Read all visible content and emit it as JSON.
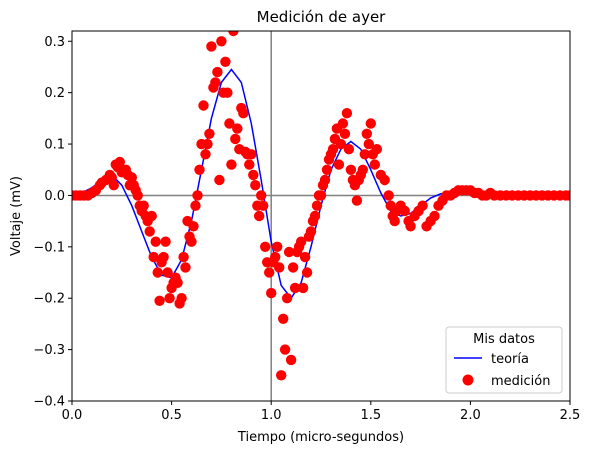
{
  "chart_data": {
    "type": "line",
    "title": "Medición de ayer",
    "xlabel": "Tiempo (micro-segundos)",
    "ylabel": "Voltaje (mV)",
    "xlim": [
      0.0,
      2.5
    ],
    "ylim": [
      -0.4,
      0.32
    ],
    "xticks": [
      "0.0",
      "0.5",
      "1.0",
      "1.5",
      "2.0",
      "2.5"
    ],
    "yticks": [
      "−0.4",
      "−0.3",
      "−0.2",
      "−0.1",
      "0.0",
      "0.1",
      "0.2",
      "0.3"
    ],
    "xtick_values": [
      0.0,
      0.5,
      1.0,
      1.5,
      2.0,
      2.5
    ],
    "ytick_values": [
      -0.4,
      -0.3,
      -0.2,
      -0.1,
      0.0,
      0.1,
      0.2,
      0.3
    ],
    "reference_lines": {
      "horizontal_y": 0.0,
      "vertical_x": 1.0,
      "color": "#808080"
    },
    "legend": {
      "title": "Mis datos",
      "placement": "lower right"
    },
    "series": [
      {
        "name": "teoría",
        "kind": "line",
        "color": "#0000ff",
        "x": [
          0.0,
          0.05,
          0.1,
          0.15,
          0.2,
          0.25,
          0.3,
          0.35,
          0.4,
          0.45,
          0.5,
          0.55,
          0.6,
          0.65,
          0.7,
          0.75,
          0.8,
          0.85,
          0.9,
          0.95,
          1.0,
          1.05,
          1.1,
          1.15,
          1.2,
          1.25,
          1.3,
          1.35,
          1.4,
          1.45,
          1.5,
          1.55,
          1.6,
          1.65,
          1.7,
          1.75,
          1.8,
          1.85,
          1.9,
          1.95,
          2.0,
          2.05,
          2.1,
          2.15,
          2.2,
          2.25,
          2.3,
          2.35,
          2.4,
          2.45,
          2.5
        ],
        "y": [
          0.0,
          0.005,
          0.015,
          0.03,
          0.04,
          0.02,
          -0.02,
          -0.07,
          -0.12,
          -0.155,
          -0.16,
          -0.125,
          -0.05,
          0.05,
          0.15,
          0.22,
          0.245,
          0.22,
          0.14,
          0.03,
          -0.09,
          -0.175,
          -0.2,
          -0.17,
          -0.1,
          -0.02,
          0.05,
          0.09,
          0.105,
          0.09,
          0.05,
          0.005,
          -0.03,
          -0.04,
          -0.035,
          -0.02,
          -0.005,
          0.003,
          0.006,
          0.005,
          0.003,
          0.0,
          0.0,
          0.0,
          0.0,
          0.0,
          0.0,
          0.0,
          0.0,
          0.0,
          0.0
        ]
      },
      {
        "name": "medición",
        "kind": "scatter",
        "color": "#ff0000",
        "x": [
          0.0,
          0.02,
          0.04,
          0.06,
          0.08,
          0.1,
          0.12,
          0.14,
          0.15,
          0.17,
          0.19,
          0.2,
          0.21,
          0.22,
          0.23,
          0.24,
          0.25,
          0.27,
          0.28,
          0.29,
          0.3,
          0.31,
          0.32,
          0.33,
          0.34,
          0.35,
          0.36,
          0.37,
          0.38,
          0.39,
          0.4,
          0.41,
          0.42,
          0.43,
          0.44,
          0.45,
          0.46,
          0.47,
          0.48,
          0.49,
          0.5,
          0.51,
          0.52,
          0.53,
          0.54,
          0.55,
          0.56,
          0.57,
          0.58,
          0.59,
          0.6,
          0.61,
          0.62,
          0.63,
          0.64,
          0.65,
          0.66,
          0.67,
          0.68,
          0.69,
          0.7,
          0.71,
          0.72,
          0.73,
          0.74,
          0.75,
          0.76,
          0.77,
          0.78,
          0.79,
          0.8,
          0.81,
          0.82,
          0.83,
          0.84,
          0.85,
          0.86,
          0.87,
          0.88,
          0.89,
          0.9,
          0.91,
          0.92,
          0.93,
          0.94,
          0.95,
          0.96,
          0.97,
          0.98,
          0.99,
          1.0,
          1.01,
          1.02,
          1.03,
          1.04,
          1.05,
          1.06,
          1.07,
          1.08,
          1.09,
          1.1,
          1.11,
          1.12,
          1.13,
          1.14,
          1.15,
          1.16,
          1.17,
          1.18,
          1.19,
          1.2,
          1.21,
          1.22,
          1.23,
          1.24,
          1.25,
          1.26,
          1.27,
          1.28,
          1.29,
          1.3,
          1.31,
          1.32,
          1.33,
          1.34,
          1.35,
          1.36,
          1.37,
          1.38,
          1.39,
          1.4,
          1.41,
          1.42,
          1.43,
          1.44,
          1.45,
          1.46,
          1.47,
          1.48,
          1.49,
          1.5,
          1.51,
          1.52,
          1.53,
          1.55,
          1.57,
          1.59,
          1.6,
          1.61,
          1.62,
          1.63,
          1.65,
          1.67,
          1.69,
          1.7,
          1.72,
          1.74,
          1.76,
          1.78,
          1.8,
          1.82,
          1.84,
          1.86,
          1.88,
          1.9,
          1.92,
          1.94,
          1.96,
          1.98,
          2.0,
          2.02,
          2.04,
          2.06,
          2.08,
          2.1,
          2.12,
          2.15,
          2.18,
          2.21,
          2.24,
          2.27,
          2.3,
          2.33,
          2.36,
          2.39,
          2.42,
          2.45,
          2.48,
          2.5
        ],
        "y": [
          0.0,
          0.0,
          0.0,
          0.0,
          0.0,
          0.005,
          0.01,
          0.02,
          0.025,
          0.03,
          0.04,
          0.035,
          0.02,
          0.06,
          0.055,
          0.065,
          0.045,
          0.05,
          0.04,
          0.02,
          0.035,
          0.02,
          0.01,
          0.0,
          -0.02,
          -0.03,
          -0.02,
          -0.04,
          -0.05,
          -0.07,
          -0.04,
          -0.12,
          -0.09,
          -0.15,
          -0.205,
          -0.13,
          -0.12,
          -0.09,
          -0.15,
          -0.2,
          -0.18,
          -0.17,
          -0.16,
          -0.17,
          -0.21,
          -0.2,
          -0.12,
          -0.14,
          -0.05,
          -0.08,
          -0.09,
          -0.06,
          -0.02,
          0.0,
          0.05,
          0.1,
          0.175,
          0.08,
          0.1,
          0.12,
          0.29,
          0.21,
          0.22,
          0.24,
          0.03,
          0.3,
          0.2,
          0.26,
          0.2,
          0.14,
          0.06,
          0.32,
          0.11,
          0.13,
          0.09,
          0.17,
          0.16,
          0.085,
          0.08,
          0.06,
          0.08,
          0.04,
          0.02,
          -0.02,
          -0.04,
          0.0,
          -0.02,
          -0.1,
          -0.13,
          -0.15,
          -0.19,
          -0.13,
          -0.12,
          -0.1,
          -0.14,
          -0.35,
          -0.24,
          -0.3,
          -0.2,
          -0.11,
          -0.32,
          -0.14,
          -0.18,
          -0.11,
          -0.1,
          -0.09,
          -0.18,
          -0.12,
          -0.15,
          -0.08,
          -0.07,
          -0.05,
          -0.04,
          -0.02,
          0.0,
          0.0,
          0.02,
          0.03,
          0.05,
          0.07,
          0.08,
          0.09,
          0.11,
          0.13,
          0.06,
          0.1,
          0.14,
          0.12,
          0.16,
          0.09,
          0.05,
          0.03,
          0.02,
          -0.01,
          0.03,
          0.04,
          0.05,
          0.08,
          0.12,
          0.1,
          0.14,
          0.08,
          0.06,
          0.09,
          0.04,
          0.03,
          0.0,
          -0.02,
          -0.04,
          -0.05,
          -0.03,
          -0.02,
          -0.03,
          -0.05,
          -0.06,
          -0.04,
          -0.03,
          -0.02,
          -0.06,
          -0.05,
          -0.04,
          -0.02,
          -0.01,
          0.0,
          0.0,
          0.005,
          0.01,
          0.01,
          0.01,
          0.01,
          0.005,
          0.005,
          0.0,
          0.0,
          0.005,
          0.0,
          0.0,
          0.0,
          0.0,
          0.0,
          0.0,
          0.0,
          0.0,
          0.0,
          0.0,
          0.0,
          0.0,
          0.0,
          0.0
        ]
      }
    ]
  }
}
